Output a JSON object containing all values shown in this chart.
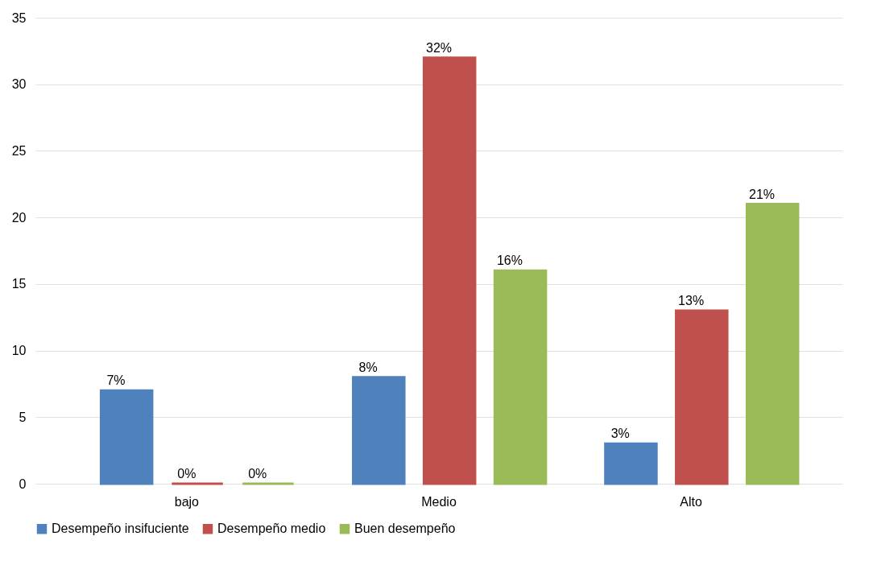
{
  "chart_data": {
    "type": "bar",
    "categories": [
      "bajo",
      "Medio",
      "Alto"
    ],
    "series": [
      {
        "name": "Desempeño insifuciente",
        "color": "#4f81bd",
        "values": [
          7,
          8,
          3
        ],
        "value_labels": [
          "7%",
          "8%",
          "3%"
        ]
      },
      {
        "name": "Desempeño medio",
        "color": "#c0504d",
        "values": [
          0,
          32,
          13
        ],
        "value_labels": [
          "0%",
          "32%",
          "13%"
        ]
      },
      {
        "name": "Buen desempeño",
        "color": "#9bbb59",
        "values": [
          0,
          16,
          21
        ],
        "value_labels": [
          "0%",
          "16%",
          "21%"
        ]
      }
    ],
    "ylim": [
      0,
      35
    ],
    "yticks": [
      0,
      5,
      10,
      15,
      20,
      25,
      30,
      35
    ],
    "grid": "y",
    "legend": "bottom"
  }
}
